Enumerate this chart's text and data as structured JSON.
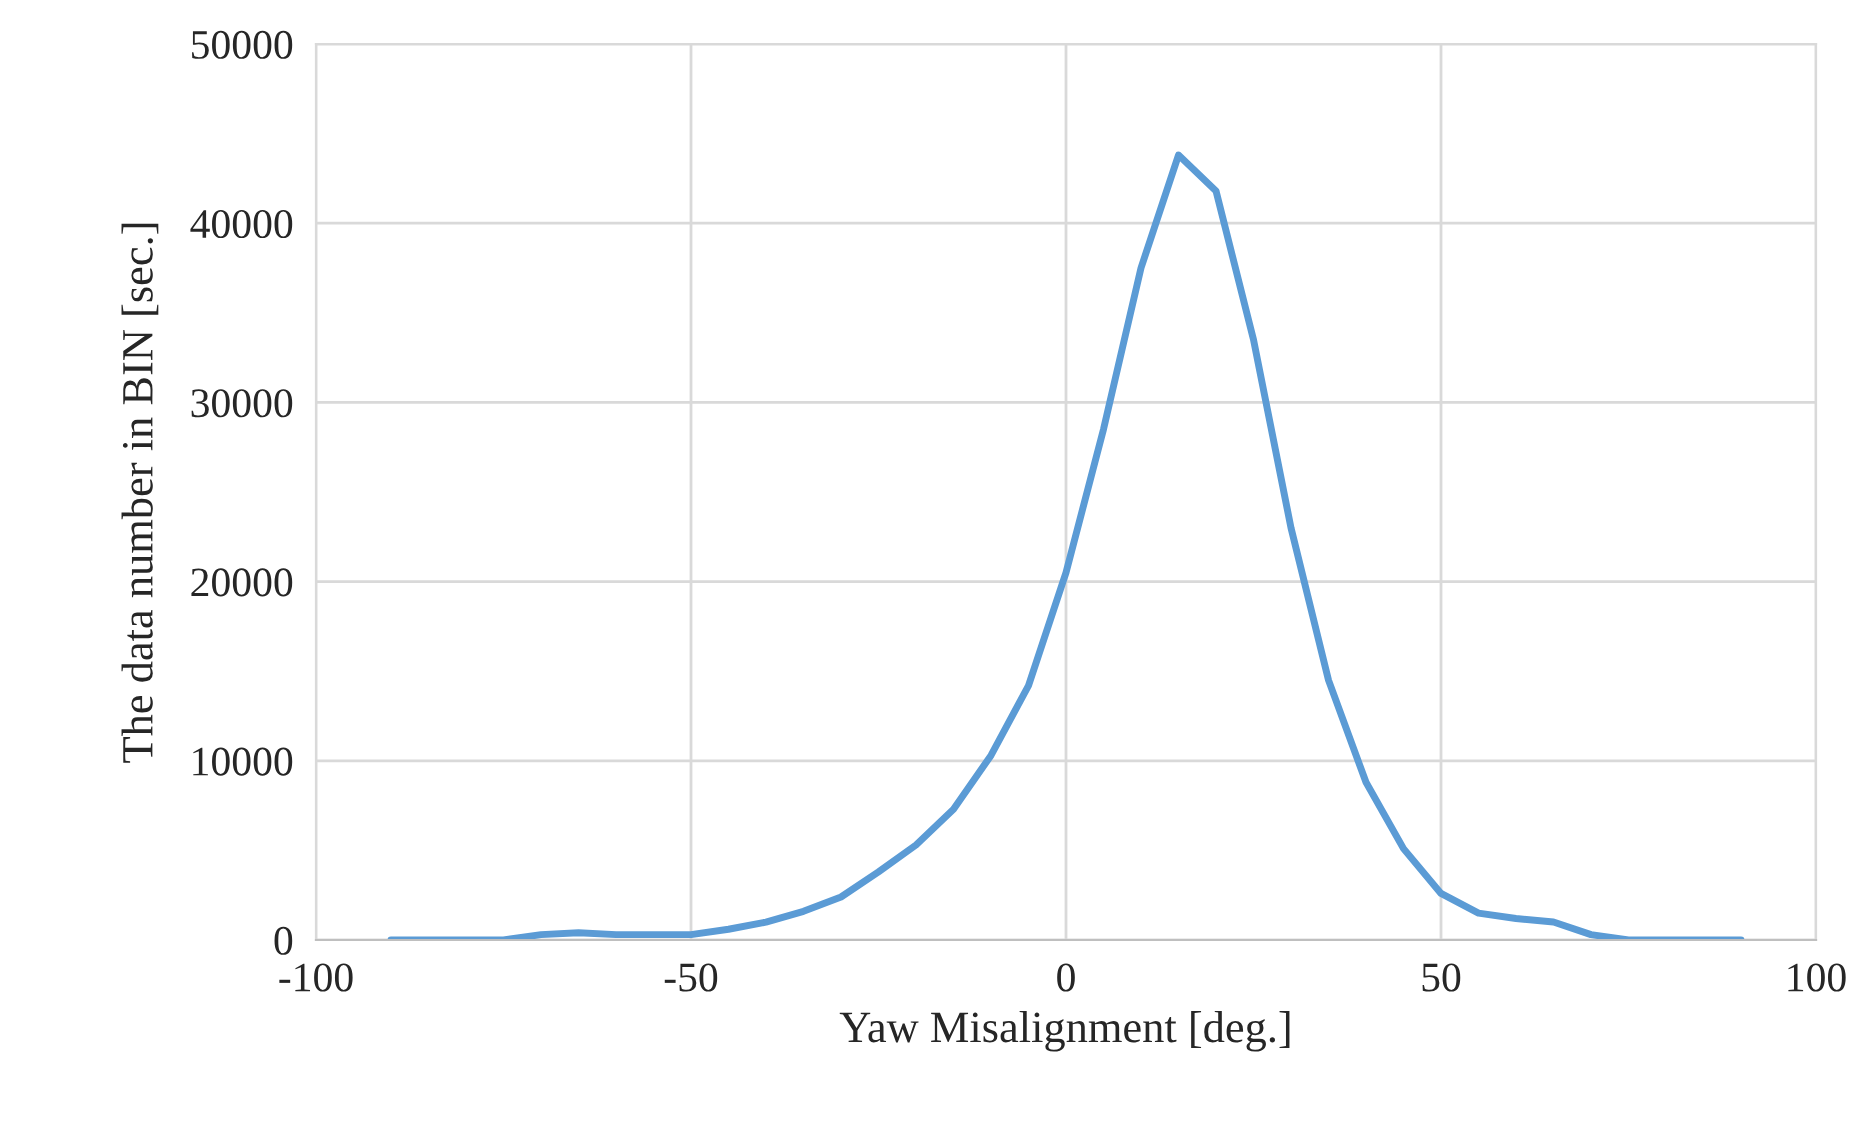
{
  "chart_data": {
    "type": "line",
    "xlabel": "Yaw Misalignment [deg.]",
    "ylabel": "The data number in BIN [sec.]",
    "x": [
      -90,
      -85,
      -80,
      -75,
      -70,
      -65,
      -60,
      -55,
      -50,
      -45,
      -40,
      -35,
      -30,
      -25,
      -20,
      -15,
      -10,
      -5,
      0,
      5,
      10,
      15,
      20,
      25,
      30,
      35,
      40,
      45,
      50,
      55,
      60,
      65,
      70,
      75,
      80,
      85,
      90
    ],
    "series": [
      {
        "color": "#5b9bd5",
        "values": [
          0,
          0,
          0,
          0,
          300,
          400,
          300,
          300,
          300,
          600,
          1000,
          1600,
          2400,
          3800,
          5300,
          7300,
          10300,
          14200,
          20500,
          28500,
          37500,
          43800,
          41800,
          33500,
          23000,
          14500,
          8800,
          5100,
          2600,
          1500,
          1200,
          1000,
          300,
          0,
          0,
          0,
          0
        ]
      }
    ],
    "xlim": [
      -100,
      100
    ],
    "xticks": [
      -100,
      -50,
      0,
      50,
      100
    ],
    "ylim": [
      0,
      50000
    ],
    "yticks": [
      0,
      10000,
      20000,
      30000,
      40000,
      50000
    ],
    "grid": true,
    "marker": "none",
    "line_style": "solid"
  }
}
